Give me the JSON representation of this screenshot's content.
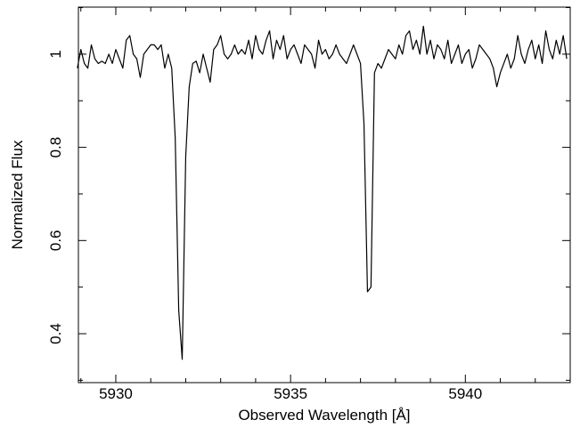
{
  "chart_data": {
    "type": "line",
    "xlabel": "Observed Wavelength [Å]",
    "ylabel": "Normalized Flux",
    "color": "#000000",
    "xlim": [
      5928.93,
      5943.0
    ],
    "ylim": [
      0.295,
      1.101
    ],
    "xticks": [
      5930,
      5935,
      5940
    ],
    "yticks": [
      {
        "value": 0.4,
        "label": "0.4"
      },
      {
        "value": 0.6,
        "label": "0.6"
      },
      {
        "value": 0.8,
        "label": "0.8"
      },
      1
    ],
    "xminorticks": [
      5929,
      5931,
      5932,
      5933,
      5934,
      5936,
      5937,
      5938,
      5939,
      5941,
      5942
    ],
    "yminorticks": [
      0.3,
      0.5,
      0.7,
      0.9,
      1.1
    ],
    "x": [
      5928.9,
      5929.0,
      5929.1,
      5929.2,
      5929.3,
      5929.4,
      5929.5,
      5929.6,
      5929.7,
      5929.8,
      5929.9,
      5930.0,
      5930.1,
      5930.2,
      5930.3,
      5930.4,
      5930.5,
      5930.6,
      5930.7,
      5930.8,
      5930.9,
      5931.0,
      5931.1,
      5931.2,
      5931.3,
      5931.4,
      5931.5,
      5931.6,
      5931.7,
      5931.8,
      5931.9,
      5932.0,
      5932.1,
      5932.2,
      5932.3,
      5932.4,
      5932.5,
      5932.6,
      5932.7,
      5932.8,
      5932.9,
      5933.0,
      5933.1,
      5933.2,
      5933.3,
      5933.4,
      5933.5,
      5933.6,
      5933.7,
      5933.8,
      5933.9,
      5934.0,
      5934.1,
      5934.2,
      5934.3,
      5934.4,
      5934.5,
      5934.6,
      5934.7,
      5934.8,
      5934.9,
      5935.0,
      5935.1,
      5935.2,
      5935.3,
      5935.4,
      5935.5,
      5935.6,
      5935.7,
      5935.8,
      5935.9,
      5936.0,
      5936.1,
      5936.2,
      5936.3,
      5936.4,
      5936.5,
      5936.6,
      5936.7,
      5936.8,
      5936.9,
      5937.0,
      5937.1,
      5937.2,
      5937.3,
      5937.4,
      5937.5,
      5937.6,
      5937.7,
      5937.8,
      5937.9,
      5938.0,
      5938.1,
      5938.2,
      5938.3,
      5938.4,
      5938.5,
      5938.6,
      5938.7,
      5938.8,
      5938.9,
      5939.0,
      5939.1,
      5939.2,
      5939.3,
      5939.4,
      5939.5,
      5939.6,
      5939.7,
      5939.8,
      5939.9,
      5940.0,
      5940.1,
      5940.2,
      5940.3,
      5940.4,
      5940.5,
      5940.6,
      5940.7,
      5940.8,
      5940.9,
      5941.0,
      5941.1,
      5941.2,
      5941.3,
      5941.4,
      5941.5,
      5941.6,
      5941.7,
      5941.8,
      5941.9,
      5942.0,
      5942.1,
      5942.2,
      5942.3,
      5942.4,
      5942.5,
      5942.6,
      5942.7,
      5942.8,
      5942.9
    ],
    "values": [
      0.97,
      1.01,
      0.98,
      0.97,
      1.02,
      0.99,
      0.98,
      0.985,
      0.98,
      1.0,
      0.98,
      1.01,
      0.99,
      0.97,
      1.03,
      1.04,
      1.0,
      0.99,
      0.95,
      1.0,
      1.01,
      1.02,
      1.02,
      1.01,
      1.02,
      0.97,
      1.0,
      0.97,
      0.82,
      0.45,
      0.345,
      0.78,
      0.93,
      0.98,
      0.985,
      0.96,
      1.0,
      0.97,
      0.94,
      1.01,
      1.02,
      1.04,
      1.0,
      0.99,
      1.0,
      1.02,
      1.0,
      1.01,
      1.0,
      1.03,
      0.99,
      1.04,
      1.01,
      1.0,
      1.03,
      1.05,
      0.99,
      1.03,
      1.01,
      1.04,
      0.99,
      1.01,
      1.02,
      1.0,
      0.98,
      1.02,
      1.01,
      1.0,
      0.97,
      1.03,
      1.0,
      1.01,
      0.99,
      1.0,
      1.02,
      1.0,
      0.99,
      0.98,
      1.0,
      1.02,
      1.0,
      0.98,
      0.85,
      0.49,
      0.5,
      0.96,
      0.98,
      0.97,
      0.99,
      1.01,
      1.0,
      0.99,
      1.02,
      1.0,
      1.04,
      1.05,
      1.01,
      1.03,
      1.0,
      1.06,
      1.0,
      1.03,
      0.99,
      1.02,
      1.01,
      0.99,
      1.03,
      0.98,
      1.0,
      1.02,
      0.98,
      1.0,
      1.01,
      0.97,
      0.99,
      1.02,
      1.01,
      1.0,
      0.99,
      0.97,
      0.93,
      0.96,
      0.98,
      1.0,
      0.97,
      0.99,
      1.04,
      1.0,
      0.98,
      1.01,
      1.03,
      0.99,
      1.02,
      0.98,
      1.05,
      1.01,
      0.99,
      1.03,
      1.0,
      1.04,
      0.99
    ]
  }
}
